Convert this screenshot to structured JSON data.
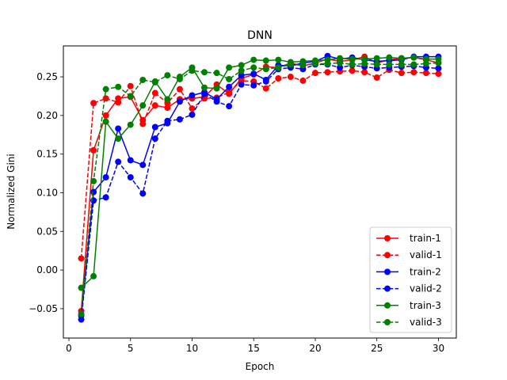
{
  "chart_data": {
    "type": "line",
    "title": "DNN",
    "xlabel": "Epoch",
    "ylabel": "Normalized Gini",
    "xlim": [
      -0.45,
      31.45
    ],
    "ylim": [
      -0.088,
      0.29
    ],
    "xticks": [
      0,
      5,
      10,
      15,
      20,
      25,
      30
    ],
    "yticks": [
      -0.05,
      0.0,
      0.05,
      0.1,
      0.15,
      0.2,
      0.25
    ],
    "ytick_labels": [
      "−0.05",
      "0.00",
      "0.05",
      "0.10",
      "0.15",
      "0.20",
      "0.25"
    ],
    "legend_position": "lower-right",
    "x": [
      1,
      2,
      3,
      4,
      5,
      6,
      7,
      8,
      9,
      10,
      11,
      12,
      13,
      14,
      15,
      16,
      17,
      18,
      19,
      20,
      21,
      22,
      23,
      24,
      25,
      26,
      27,
      28,
      29,
      30
    ],
    "series": [
      {
        "name": "train-1",
        "color": "#ff0000",
        "dashed": false,
        "values": [
          -0.053,
          0.155,
          0.2,
          0.222,
          0.224,
          0.194,
          0.213,
          0.21,
          0.221,
          0.222,
          0.224,
          0.24,
          0.228,
          0.248,
          0.253,
          0.263,
          0.262,
          0.268,
          0.264,
          0.268,
          0.273,
          0.27,
          0.272,
          0.276,
          0.268,
          0.272,
          0.274,
          0.275,
          0.272,
          0.268
        ]
      },
      {
        "name": "valid-1",
        "color": "#ff0000",
        "dashed": true,
        "values": [
          0.015,
          0.216,
          0.222,
          0.217,
          0.238,
          0.189,
          0.229,
          0.216,
          0.234,
          0.209,
          0.222,
          0.223,
          0.23,
          0.245,
          0.244,
          0.235,
          0.248,
          0.25,
          0.245,
          0.255,
          0.256,
          0.257,
          0.258,
          0.256,
          0.249,
          0.259,
          0.255,
          0.256,
          0.255,
          0.254
        ]
      },
      {
        "name": "train-2",
        "color": "#0000ff",
        "dashed": false,
        "values": [
          -0.059,
          0.101,
          0.12,
          0.183,
          0.142,
          0.136,
          0.185,
          0.19,
          0.218,
          0.226,
          0.23,
          0.221,
          0.237,
          0.252,
          0.254,
          0.246,
          0.265,
          0.264,
          0.268,
          0.27,
          0.277,
          0.273,
          0.275,
          0.272,
          0.27,
          0.271,
          0.272,
          0.276,
          0.276,
          0.276
        ]
      },
      {
        "name": "valid-2",
        "color": "#0000ff",
        "dashed": true,
        "values": [
          -0.064,
          0.09,
          0.094,
          0.14,
          0.12,
          0.099,
          0.17,
          0.193,
          0.195,
          0.201,
          0.228,
          0.218,
          0.212,
          0.24,
          0.239,
          0.244,
          0.26,
          0.262,
          0.26,
          0.266,
          0.266,
          0.262,
          0.265,
          0.263,
          0.261,
          0.262,
          0.263,
          0.264,
          0.262,
          0.261
        ]
      },
      {
        "name": "train-3",
        "color": "#008000",
        "dashed": false,
        "values": [
          -0.023,
          -0.008,
          0.192,
          0.17,
          0.188,
          0.213,
          0.244,
          0.221,
          0.25,
          0.262,
          0.236,
          0.235,
          0.262,
          0.265,
          0.272,
          0.271,
          0.272,
          0.269,
          0.27,
          0.271,
          0.272,
          0.274,
          0.273,
          0.273,
          0.274,
          0.275,
          0.274,
          0.275,
          0.273,
          0.273
        ]
      },
      {
        "name": "valid-3",
        "color": "#008000",
        "dashed": true,
        "values": [
          -0.057,
          0.115,
          0.234,
          0.237,
          0.225,
          0.246,
          0.243,
          0.252,
          0.247,
          0.258,
          0.256,
          0.255,
          0.247,
          0.258,
          0.262,
          0.26,
          0.262,
          0.266,
          0.265,
          0.267,
          0.267,
          0.268,
          0.266,
          0.267,
          0.266,
          0.266,
          0.266,
          0.266,
          0.267,
          0.268
        ]
      }
    ]
  }
}
